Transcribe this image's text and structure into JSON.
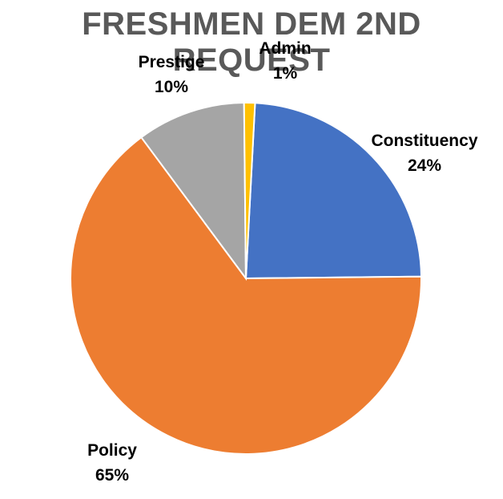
{
  "chart_data": {
    "type": "pie",
    "title": "FRESHMEN DEM 2ND REQUEST",
    "slices": [
      {
        "label": "Constituency",
        "value": 24,
        "display": "24%",
        "color": "#4472C4"
      },
      {
        "label": "Policy",
        "value": 65,
        "display": "65%",
        "color": "#ED7D31"
      },
      {
        "label": "Prestige",
        "value": 10,
        "display": "10%",
        "color": "#A5A5A5"
      },
      {
        "label": "Admin",
        "value": 1,
        "display": "1%",
        "color": "#FFC000"
      }
    ],
    "start_angle_deg": 3,
    "direction": "clockwise",
    "legend": "none",
    "data_labels": "outside"
  }
}
